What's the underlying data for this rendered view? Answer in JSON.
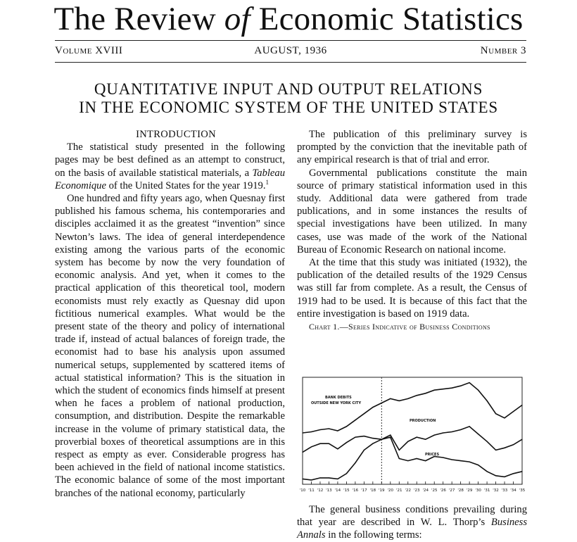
{
  "journal": {
    "title_pre": "The Review ",
    "title_of": "of",
    "title_post": " Economic Statistics",
    "volume": "Volume XVIII",
    "date": "AUGUST, 1936",
    "number": "Number 3"
  },
  "article": {
    "title_line1": "QUANTITATIVE INPUT AND OUTPUT RELATIONS",
    "title_line2": "IN THE ECONOMIC SYSTEM OF THE UNITED STATES"
  },
  "left_column": {
    "heading": "INTRODUCTION",
    "p1_a": "The statistical study presented in the following pages may be best defined as an attempt to construct, on the basis of available statistical materials, a ",
    "p1_italic": "Tableau Economique",
    "p1_b": " of the United States for the year 1919.",
    "p1_note": "1",
    "p2": "One hundred and fifty years ago, when Quesnay first published his famous schema, his contemporaries and disciples acclaimed it as the greatest “invention” since Newton’s laws. The idea of general interdependence existing among the various parts of the economic system has become by now the very foundation of economic analysis. And yet, when it comes to the practical application of this theoretical tool, modern economists must rely exactly as Quesnay did upon fictitious numerical examples. What would be the present state of the theory and policy of international trade if, instead of actual balances of foreign trade, the economist had to base his analysis upon assumed numerical setups, supplemented by scattered items of actual statistical information? This is the situation in which the student of economics finds himself at present when he faces a problem of national production, consumption, and distribution. Despite the remarkable increase in the volume of primary statistical data, the proverbial boxes of theoretical assumptions are in this respect as empty as ever. Considerable progress has been achieved in the field of national income statistics. The economic balance of some of the most important branches of the national economy, particularly"
  },
  "right_column": {
    "p1": "The publication of this preliminary survey is prompted by the conviction that the inevitable path of any empirical research is that of trial and error.",
    "p2": "Governmental publications constitute the main source of primary statistical information used in this study. Additional data were gathered from trade publications, and in some instances the results of special investigations have been utilized. In many cases, use was made of the work of the National Bureau of Economic Research on national income.",
    "p3": "At the time that this study was initiated (1932), the publication of the detailed results of the 1929 Census was still far from complete. As a result, the Census of 1919 had to be used. It is because of this fact that the entire investigation is based on 1919 data.",
    "chart_caption": "Chart 1.—Series Indicative of Business Conditions",
    "after_a": "The general business conditions prevailing during that year are described in W. L. Thorp’s ",
    "after_italic": "Business Annals",
    "after_b": " in the following terms:"
  },
  "chart_data": {
    "type": "line",
    "title": "Series Indicative of Business Conditions",
    "x": [
      "1910",
      "1911",
      "1912",
      "1913",
      "1914",
      "1915",
      "1916",
      "1917",
      "1918",
      "1919",
      "1920",
      "1921",
      "1922",
      "1923",
      "1924",
      "1925",
      "1926",
      "1927",
      "1928",
      "1929",
      "1930",
      "1931",
      "1932",
      "1933",
      "1934",
      "1935"
    ],
    "x_tick_labels": [
      "'10",
      "'11",
      "'12",
      "'13",
      "'14",
      "'15",
      "'16",
      "'17",
      "'18",
      "'19",
      "'20",
      "'21",
      "'22",
      "'23",
      "'24",
      "'25",
      "'26",
      "'27",
      "'28",
      "'29",
      "'30",
      "'31",
      "'32",
      "'33",
      "'34",
      "'35"
    ],
    "series": [
      {
        "name": "BANK DEBITS OUTSIDE NEW YORK CITY",
        "values": [
          48,
          49,
          51,
          52,
          50,
          54,
          60,
          66,
          72,
          76,
          80,
          78,
          80,
          83,
          85,
          88,
          89,
          90,
          92,
          95,
          88,
          78,
          66,
          62,
          68,
          74
        ]
      },
      {
        "name": "PRODUCTION",
        "values": [
          30,
          35,
          38,
          38,
          33,
          39,
          44,
          45,
          43,
          42,
          46,
          32,
          40,
          44,
          42,
          46,
          48,
          49,
          51,
          54,
          47,
          40,
          32,
          34,
          37,
          42
        ]
      },
      {
        "name": "PRICES",
        "values": [
          5,
          4,
          6,
          6,
          5,
          10,
          20,
          32,
          38,
          42,
          44,
          24,
          22,
          24,
          22,
          26,
          25,
          23,
          22,
          21,
          18,
          12,
          8,
          7,
          10,
          12
        ]
      }
    ],
    "ylim": [
      0,
      100
    ],
    "marker_year": "1919",
    "grid": false
  }
}
